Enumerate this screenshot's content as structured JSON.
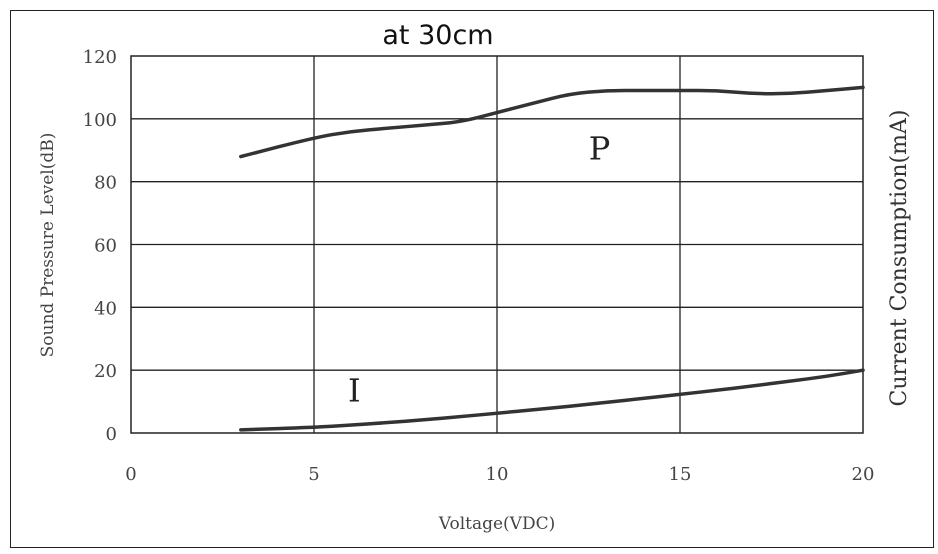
{
  "chart_data": {
    "type": "line",
    "title": "at 30cm",
    "xlabel": "Voltage(VDC)",
    "ylabel": "Sound Pressure Level(dB)",
    "y2label": "Current Consumption(mA)",
    "xlim": [
      0,
      20
    ],
    "ylim": [
      0,
      120
    ],
    "xticks": [
      "0",
      "5",
      "10",
      "15",
      "20"
    ],
    "yticks": [
      "0",
      "20",
      "40",
      "60",
      "80",
      "100",
      "120"
    ],
    "grid": true,
    "series": [
      {
        "id": "P",
        "x": [
          3,
          5,
          6,
          7,
          8,
          9,
          10,
          11,
          12,
          13,
          14,
          15,
          16,
          17,
          18,
          19,
          20
        ],
        "values": [
          88,
          94,
          96,
          97,
          98,
          99,
          102,
          105,
          108,
          109,
          109,
          109,
          109,
          108,
          108,
          109,
          110
        ],
        "color": "#333333"
      },
      {
        "id": "I",
        "x": [
          3,
          5,
          6,
          7,
          8,
          9,
          10,
          11,
          12,
          13,
          14,
          15,
          16,
          17,
          18,
          19,
          20
        ],
        "values": [
          1,
          1.8,
          2.5,
          3.3,
          4.2,
          5.2,
          6.3,
          7.4,
          8.5,
          9.8,
          11,
          12.3,
          13.6,
          15,
          16.5,
          18,
          20
        ],
        "color": "#333333"
      }
    ],
    "annotations": [
      {
        "text": "P",
        "x": 12.8,
        "y": 87
      },
      {
        "text": "I",
        "x": 6.1,
        "y": 10
      }
    ]
  }
}
